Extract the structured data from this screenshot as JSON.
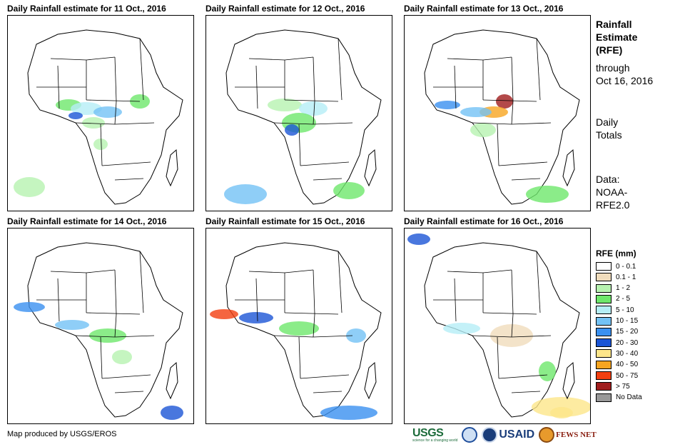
{
  "panels": [
    {
      "title": "Daily Rainfall estimate for 11 Oct., 2016"
    },
    {
      "title": "Daily Rainfall estimate for 12 Oct., 2016"
    },
    {
      "title": "Daily Rainfall estimate for 13 Oct., 2016"
    },
    {
      "title": "Daily Rainfall estimate for 14 Oct., 2016"
    },
    {
      "title": "Daily Rainfall estimate for 15 Oct., 2016"
    },
    {
      "title": "Daily Rainfall estimate for 16 Oct., 2016"
    }
  ],
  "sidebar": {
    "title": "Rainfall\nEstimate\n(RFE)",
    "through": "through\nOct 16, 2016",
    "totals": "Daily\nTotals",
    "source": "Data:\nNOAA-\nRFE2.0"
  },
  "legend": {
    "title": "RFE (mm)",
    "items": [
      {
        "label": "0 - 0.1",
        "color": "#ffffff"
      },
      {
        "label": "0.1 - 1",
        "color": "#f0dcbc"
      },
      {
        "label": "1 - 2",
        "color": "#b7f2b0"
      },
      {
        "label": "2 - 5",
        "color": "#6ee76b"
      },
      {
        "label": "5 - 10",
        "color": "#b5eef6"
      },
      {
        "label": "10 - 15",
        "color": "#73c2f5"
      },
      {
        "label": "15 - 20",
        "color": "#3a90f0"
      },
      {
        "label": "20 - 30",
        "color": "#1b55d6"
      },
      {
        "label": "30 - 40",
        "color": "#fde68a"
      },
      {
        "label": "40 - 50",
        "color": "#f7a520"
      },
      {
        "label": "50 - 75",
        "color": "#f23f10"
      },
      {
        "label": "> 75",
        "color": "#a01d1d"
      },
      {
        "label": "No Data",
        "color": "#999999"
      }
    ]
  },
  "footer": {
    "credit": "Map produced by USGS/EROS"
  },
  "logos": {
    "usgs": "USGS",
    "usgs_tagline": "science for a changing world",
    "usaid": "USAID",
    "fews": "FEWS NET"
  }
}
